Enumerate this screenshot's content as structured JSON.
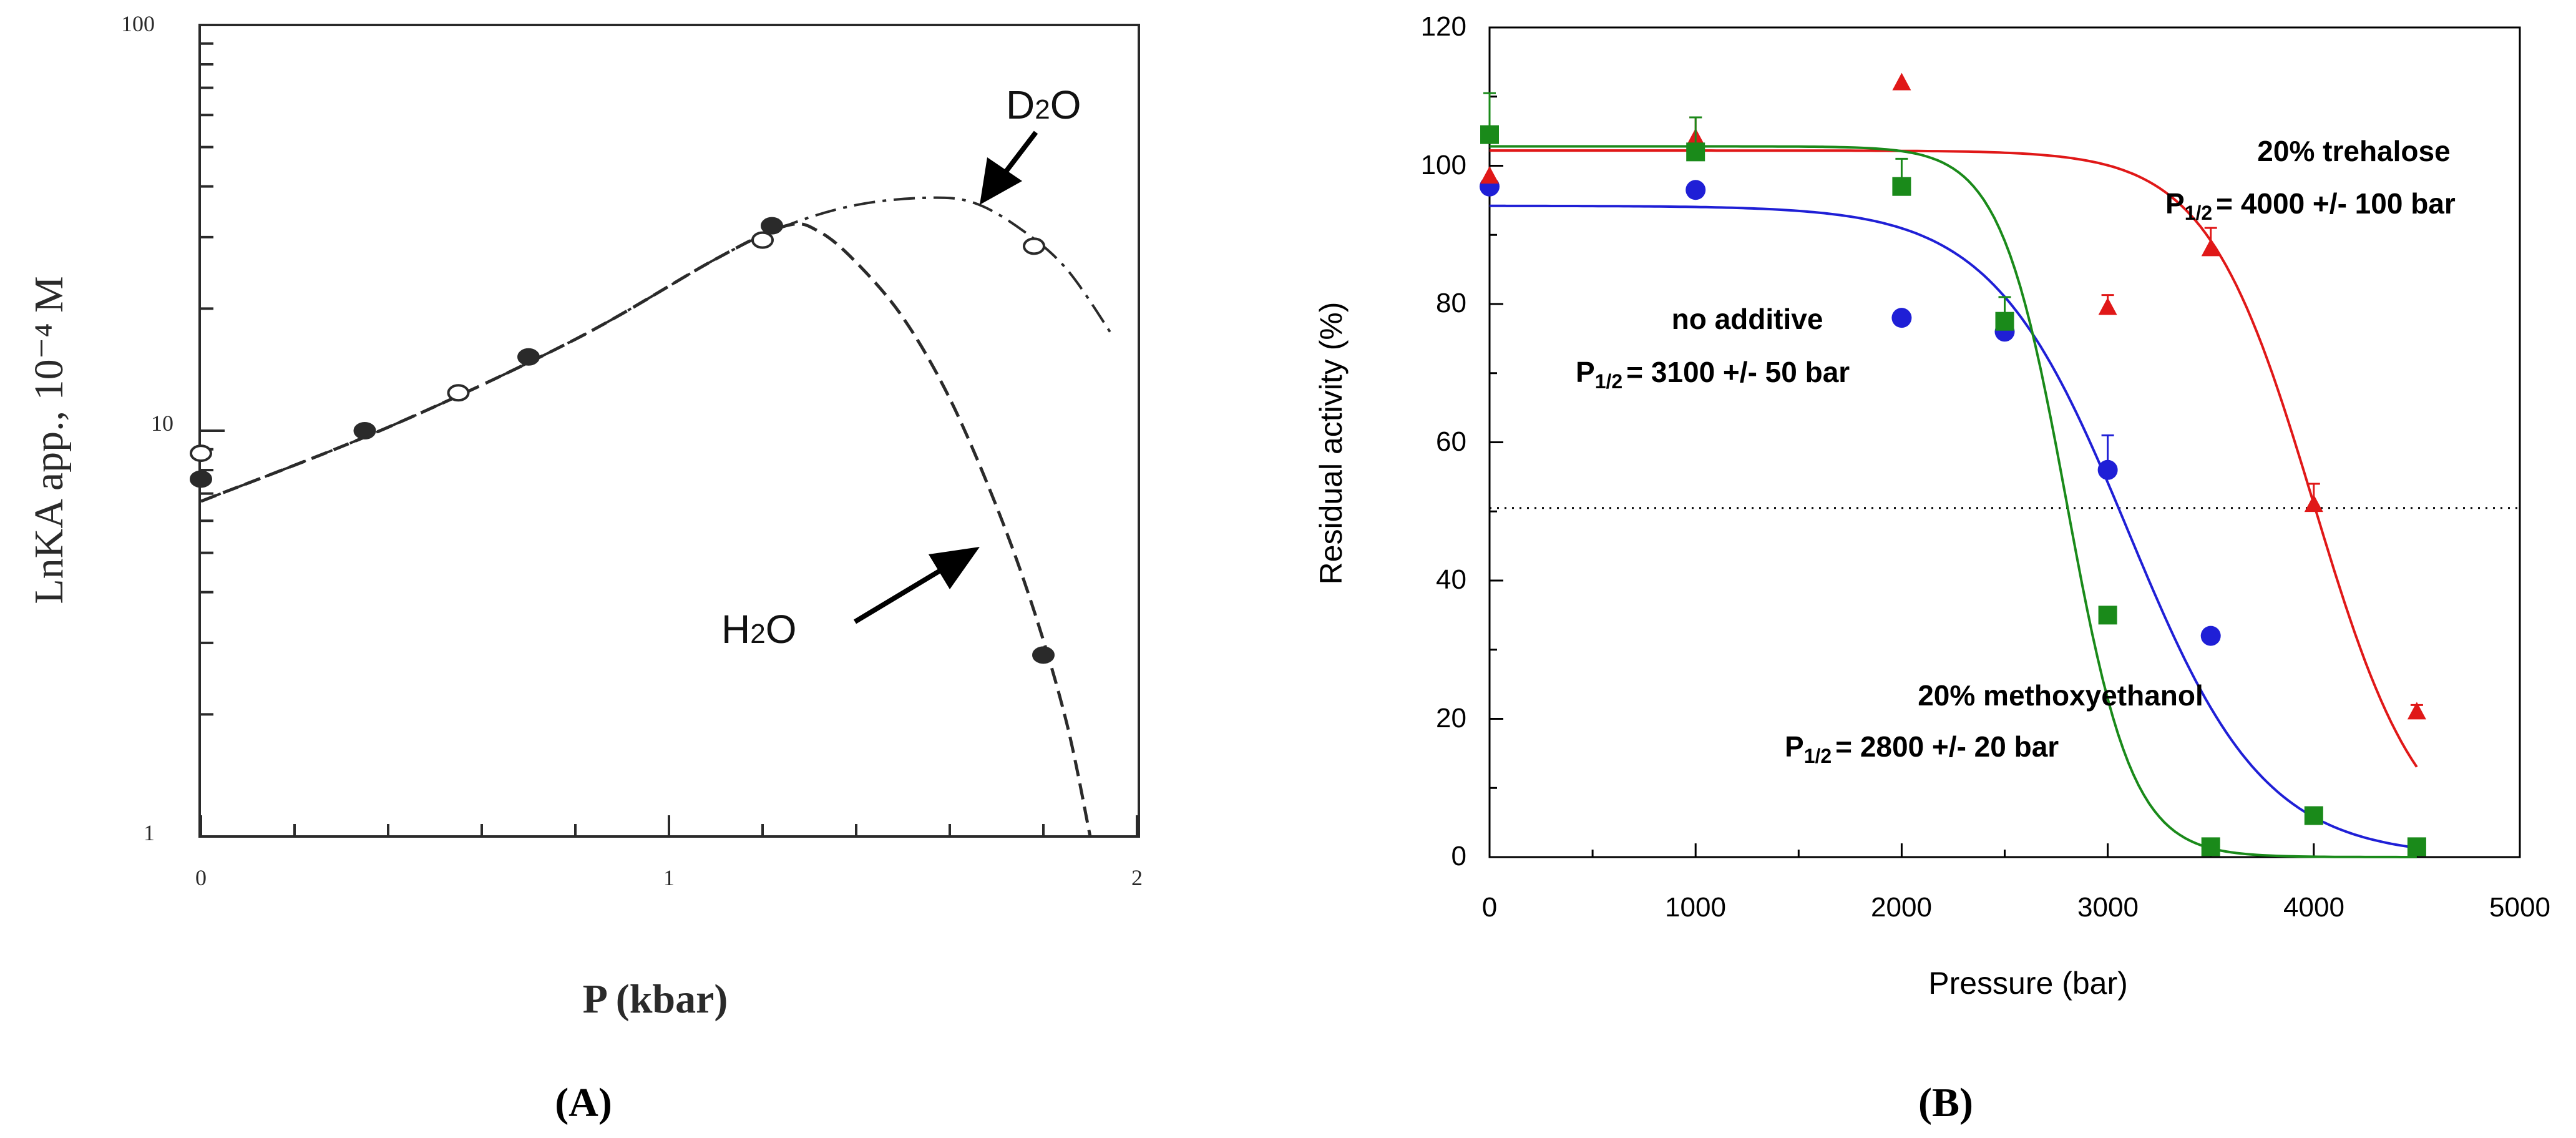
{
  "colors": {
    "no_additive": "#1f1fd6",
    "trehalose": "#e01818",
    "methoxyethanol": "#1a8a1a",
    "axis": "#000000",
    "panel_a_ink": "#2a2a2a"
  },
  "panels": {
    "a_label": "(A)",
    "b_label": "(B)"
  },
  "chart_data": [
    {
      "type": "line",
      "panel": "A",
      "title": "",
      "xlabel": "P (kbar)",
      "ylabel": "LnKA app., 10⁻⁴ M",
      "yscale": "log",
      "xlim": [
        0,
        2
      ],
      "ylim": [
        1,
        100
      ],
      "x_ticks": [
        0,
        1,
        2
      ],
      "x_tick_labels": [
        "0",
        "1",
        "2"
      ],
      "y_ticks": [
        1,
        10,
        100
      ],
      "y_tick_labels": [
        "1",
        "10",
        "100"
      ],
      "grid": false,
      "series": [
        {
          "name": "H2O",
          "marker": "filled-circle",
          "points": [
            [
              0.0,
              7.6
            ],
            [
              0.35,
              10.0
            ],
            [
              0.7,
              15.2
            ],
            [
              1.22,
              32.0
            ],
            [
              1.8,
              2.8
            ]
          ],
          "curve": [
            [
              0.0,
              6.7
            ],
            [
              0.4,
              10.2
            ],
            [
              0.8,
              16.8
            ],
            [
              1.1,
              26.5
            ],
            [
              1.25,
              32.0
            ],
            [
              1.32,
              31.0
            ],
            [
              1.4,
              26.0
            ],
            [
              1.5,
              19.0
            ],
            [
              1.6,
              12.0
            ],
            [
              1.7,
              6.5
            ],
            [
              1.78,
              3.6
            ],
            [
              1.85,
              1.9
            ],
            [
              1.9,
              1.0
            ]
          ]
        },
        {
          "name": "D2O",
          "marker": "open-circle",
          "points": [
            [
              0.0,
              8.8
            ],
            [
              0.55,
              12.4
            ],
            [
              1.2,
              29.5
            ],
            [
              1.78,
              28.5
            ]
          ],
          "curve": [
            [
              0.0,
              6.7
            ],
            [
              0.4,
              10.2
            ],
            [
              0.8,
              16.8
            ],
            [
              1.1,
              26.5
            ],
            [
              1.25,
              32.0
            ],
            [
              1.4,
              36.0
            ],
            [
              1.55,
              37.5
            ],
            [
              1.65,
              36.5
            ],
            [
              1.75,
              31.5
            ],
            [
              1.85,
              25.0
            ],
            [
              1.95,
              17.0
            ]
          ]
        }
      ],
      "annotations": [
        {
          "text_main": "D",
          "text_sub": "2",
          "text_tail": "O",
          "series": "D2O"
        },
        {
          "text_main": "H",
          "text_sub": "2",
          "text_tail": "O",
          "series": "H2O"
        }
      ]
    },
    {
      "type": "scatter",
      "panel": "B",
      "title": "",
      "xlabel": "Pressure (bar)",
      "ylabel": "Residual activity (%)",
      "xlim": [
        0,
        5000
      ],
      "ylim": [
        0,
        120
      ],
      "x_ticks": [
        0,
        1000,
        2000,
        3000,
        4000,
        5000
      ],
      "x_tick_labels": [
        "0",
        "1000",
        "2000",
        "3000",
        "4000",
        "5000"
      ],
      "y_ticks": [
        0,
        20,
        40,
        60,
        80,
        100,
        120
      ],
      "y_tick_labels": [
        "0",
        "20",
        "40",
        "60",
        "80",
        "100",
        "120"
      ],
      "grid": false,
      "reference_line": {
        "y": 50.5,
        "style": "dotted"
      },
      "series": [
        {
          "name": "no additive",
          "marker": "circle",
          "color_key": "no_additive",
          "points": [
            [
              0,
              97
            ],
            [
              1000,
              96.5
            ],
            [
              2000,
              78
            ],
            [
              2500,
              76
            ],
            [
              3000,
              56
            ],
            [
              3500,
              32
            ]
          ],
          "errors": [
            [
              0,
              0
            ],
            [
              1000,
              0
            ],
            [
              2000,
              0
            ],
            [
              2500,
              2
            ],
            [
              3000,
              5
            ],
            [
              3500,
              0
            ]
          ],
          "fit": {
            "top": 94.2,
            "p_half": 3100,
            "k": 330
          }
        },
        {
          "name": "20% trehalose",
          "marker": "triangle",
          "color_key": "trehalose",
          "points": [
            [
              0,
              98.5
            ],
            [
              1000,
              104
            ],
            [
              2000,
              112
            ],
            [
              3000,
              79.5
            ],
            [
              3500,
              88
            ],
            [
              4000,
              51
            ],
            [
              4500,
              21
            ]
          ],
          "errors": [
            [
              0,
              0
            ],
            [
              1000,
              3
            ],
            [
              2000,
              0
            ],
            [
              3000,
              1.8
            ],
            [
              3500,
              3
            ],
            [
              4000,
              3
            ],
            [
              4500,
              1
            ]
          ],
          "fit": {
            "top": 102.2,
            "p_half": 4000,
            "k": 260
          }
        },
        {
          "name": "20% methoxyethanol",
          "marker": "square",
          "color_key": "methoxyethanol",
          "points": [
            [
              0,
              104.5
            ],
            [
              1000,
              102
            ],
            [
              2000,
              97
            ],
            [
              2500,
              77.5
            ],
            [
              3000,
              35
            ],
            [
              3500,
              1.5
            ],
            [
              4000,
              6
            ],
            [
              4500,
              1.5
            ]
          ],
          "errors": [
            [
              0,
              6
            ],
            [
              1000,
              5
            ],
            [
              2000,
              4
            ],
            [
              2500,
              3.5
            ],
            [
              3000,
              0
            ],
            [
              3500,
              0
            ],
            [
              4000,
              0
            ],
            [
              4500,
              0
            ]
          ],
          "fit": {
            "top": 102.8,
            "p_half": 2800,
            "k": 160
          }
        }
      ],
      "annotations": [
        {
          "label": "20% trehalose",
          "p_main": "P",
          "p_sub": "1/2",
          "p_value": "= 4000 +/- 100 bar"
        },
        {
          "label": "no additive",
          "p_main": "P",
          "p_sub": "1/2",
          "p_value": "= 3100 +/- 50 bar"
        },
        {
          "label": "20% methoxyethanol",
          "p_main": "P",
          "p_sub": "1/2",
          "p_value": "=  2800 +/- 20 bar"
        }
      ]
    }
  ]
}
